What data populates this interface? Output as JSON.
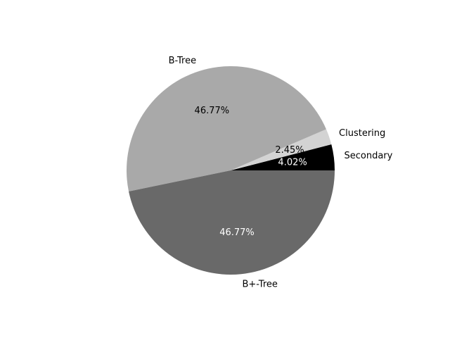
{
  "chart_data": {
    "type": "pie",
    "labels": [
      "Secondary",
      "Clustering",
      "B-Tree",
      "B+-Tree"
    ],
    "values": [
      4.02,
      2.45,
      46.77,
      46.77
    ],
    "value_labels": [
      "4.02%",
      "2.45%",
      "46.77%",
      "46.77%"
    ],
    "colors": [
      "#000000",
      "#d3d3d3",
      "#a9a9a9",
      "#696969"
    ],
    "label_text_colors": [
      "#ffffff",
      "#000000",
      "#000000",
      "#ffffff"
    ],
    "start_angle_deg": 0,
    "direction": "counterclockwise",
    "legend": "none"
  }
}
